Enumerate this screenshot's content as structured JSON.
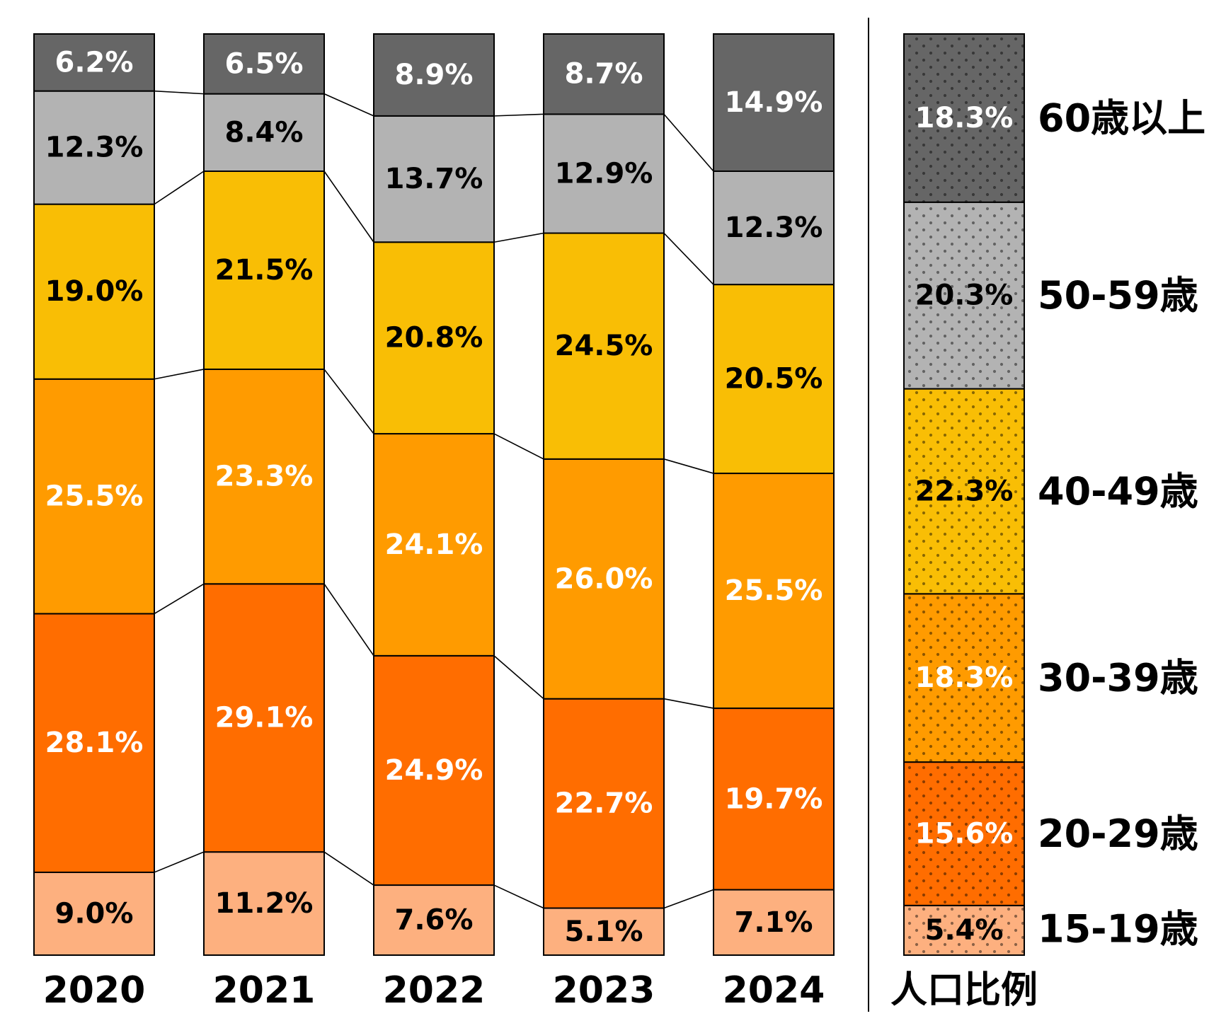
{
  "chart_data": {
    "type": "bar",
    "stacked": true,
    "normalized": true,
    "categories": [
      "2020",
      "2021",
      "2022",
      "2023",
      "2024"
    ],
    "series": [
      {
        "name": "15-19歳",
        "color": "#FDB07F",
        "label_color": "#000000",
        "values": [
          9.0,
          11.2,
          7.6,
          5.1,
          7.1
        ]
      },
      {
        "name": "20-29歳",
        "color": "#FF6D00",
        "label_color": "#FFFFFF",
        "values": [
          28.1,
          29.1,
          24.9,
          22.7,
          19.7
        ]
      },
      {
        "name": "30-39歳",
        "color": "#FF9B00",
        "label_color": "#FFFFFF",
        "values": [
          25.5,
          23.3,
          24.1,
          26.0,
          25.5
        ]
      },
      {
        "name": "40-49歳",
        "color": "#F9BE05",
        "label_color": "#000000",
        "values": [
          19.0,
          21.5,
          20.8,
          24.5,
          20.5
        ]
      },
      {
        "name": "50-59歳",
        "color": "#B3B3B3",
        "label_color": "#000000",
        "values": [
          12.3,
          8.4,
          13.7,
          12.9,
          12.3
        ]
      },
      {
        "name": "60歳以上",
        "color": "#666666",
        "label_color": "#FFFFFF",
        "values": [
          6.2,
          6.5,
          8.9,
          8.7,
          14.9
        ]
      }
    ],
    "reference": {
      "label": "人口比例",
      "values": [
        5.4,
        15.6,
        18.3,
        22.3,
        20.3,
        18.3
      ]
    },
    "value_suffix": "%",
    "legend": "right",
    "grid": false
  }
}
